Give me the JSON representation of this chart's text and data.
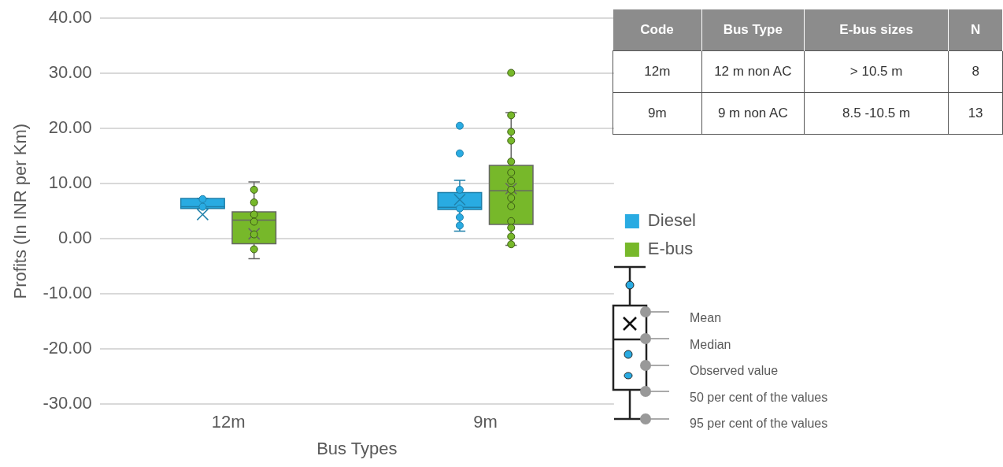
{
  "chart_data": [
    {
      "type": "box",
      "xlabel": "Bus Types",
      "ylabel": "Profits (In INR per Km)",
      "categories": [
        "12m",
        "9m"
      ],
      "series": [
        {
          "name": "Diesel",
          "color": "#29abe2",
          "boxes": [
            {
              "low": 5.5,
              "q1": 5.5,
              "median": 5.8,
              "q3": 7.3,
              "high": 7.3,
              "mean": 4.4,
              "outliers": [
                7.2,
                5.8
              ]
            },
            {
              "low": 1.4,
              "q1": 5.3,
              "median": 5.7,
              "q3": 8.4,
              "high": 10.6,
              "mean": 7.1,
              "outliers": [
                20.5,
                15.5,
                8.9,
                5.5,
                3.9,
                2.4
              ]
            }
          ]
        },
        {
          "name": "E-bus",
          "color": "#77b82a",
          "boxes": [
            {
              "low": -3.6,
              "q1": -0.9,
              "median": 3.4,
              "q3": 4.9,
              "high": 10.3,
              "mean": 0.9,
              "outliers": [
                8.9,
                6.6,
                4.4,
                3.1,
                0.8,
                -1.9
              ]
            },
            {
              "low": -1.2,
              "q1": 2.6,
              "median": 8.7,
              "q3": 13.3,
              "high": 22.9,
              "mean": 9.1,
              "outliers": [
                30.1,
                22.4,
                19.4,
                17.8,
                14.0,
                12.0,
                10.5,
                8.9,
                7.4,
                5.9,
                3.2,
                2.0,
                0.4,
                -1.0
              ]
            }
          ]
        }
      ],
      "ylim": [
        -30,
        40
      ],
      "yticks": [
        {
          "value": -30,
          "label": "-30.00"
        },
        {
          "value": -20,
          "label": "-20.00"
        },
        {
          "value": -10,
          "label": "-10.00"
        },
        {
          "value": 0,
          "label": "0.00"
        },
        {
          "value": 10,
          "label": "10.00"
        },
        {
          "value": 20,
          "label": "20.00"
        },
        {
          "value": 30,
          "label": "30.00"
        },
        {
          "value": 40,
          "label": "40.00"
        }
      ],
      "grid": "y",
      "legend": "right",
      "annotations": [
        "Mean",
        "Median",
        "Observed value",
        "50 per cent of the values",
        "95 per cent of the values"
      ]
    },
    {
      "type": "other",
      "annotations": [
        "Code",
        "Bus Type",
        "E-bus sizes",
        "N",
        "12m",
        "12 m non AC",
        "> 10.5 m",
        "8",
        "9m",
        "9 m non AC",
        "8.5 -10.5 m",
        "13"
      ]
    }
  ]
}
